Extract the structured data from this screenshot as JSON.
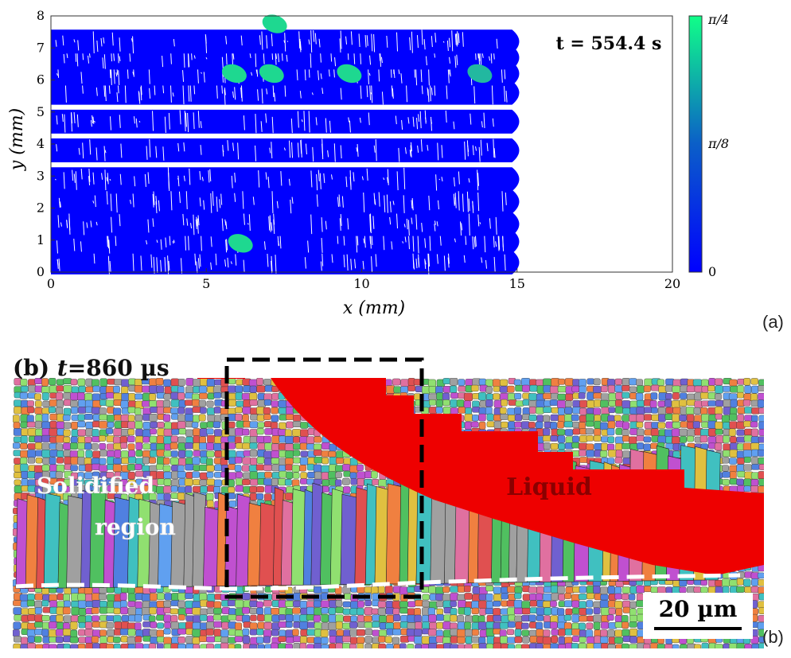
{
  "panel_a": {
    "tag": "(a)",
    "time_label": "t = 554.4 s",
    "colorbar": {
      "ticks": [
        "π/4",
        "π/8",
        "0"
      ],
      "colors": [
        "#0000ff",
        "#0b5fc8",
        "#10ff88"
      ]
    },
    "chart_data": {
      "type": "heatmap",
      "xlabel": "x (mm)",
      "ylabel": "y (mm)",
      "xlim": [
        0,
        20
      ],
      "ylim": [
        0,
        8
      ],
      "xticks": [
        "0",
        "5",
        "10",
        "15",
        "20"
      ],
      "yticks": [
        "0",
        "1",
        "2",
        "3",
        "4",
        "5",
        "6",
        "7",
        "8"
      ],
      "colorbar_range": [
        0,
        0.785398
      ],
      "scan_track_centers_y": [
        0.3,
        0.95,
        1.5,
        2.2,
        2.9,
        3.8,
        4.7,
        5.6,
        6.2,
        6.7,
        7.2
      ],
      "scan_end_x": 15.3,
      "grain_clusters": [
        {
          "x": 7.2,
          "y": 7.75,
          "angle": 0.7
        },
        {
          "x": 5.9,
          "y": 6.2,
          "angle": 0.65
        },
        {
          "x": 7.1,
          "y": 6.2,
          "angle": 0.6
        },
        {
          "x": 9.6,
          "y": 6.2,
          "angle": 0.72
        },
        {
          "x": 13.8,
          "y": 6.2,
          "angle": 0.55
        },
        {
          "x": 6.1,
          "y": 0.9,
          "angle": 0.6
        }
      ]
    }
  },
  "panel_b": {
    "tag": "(b)",
    "title_prefix": "(b) ",
    "title_t": "t",
    "title_value": "=860 µs",
    "label_solidified_1": "Solidified",
    "label_solidified_2": "region",
    "label_liquid": "Liquid",
    "scale_bar": "20 µm",
    "colors": {
      "liquid": "#ee0000",
      "grain_palette": [
        "#e05050",
        "#50c060",
        "#5080e0",
        "#e0c040",
        "#c050d0",
        "#40c0c0",
        "#f08040",
        "#90e070",
        "#7060d0",
        "#e070a0",
        "#60a0f0",
        "#a0a0a0"
      ]
    }
  }
}
